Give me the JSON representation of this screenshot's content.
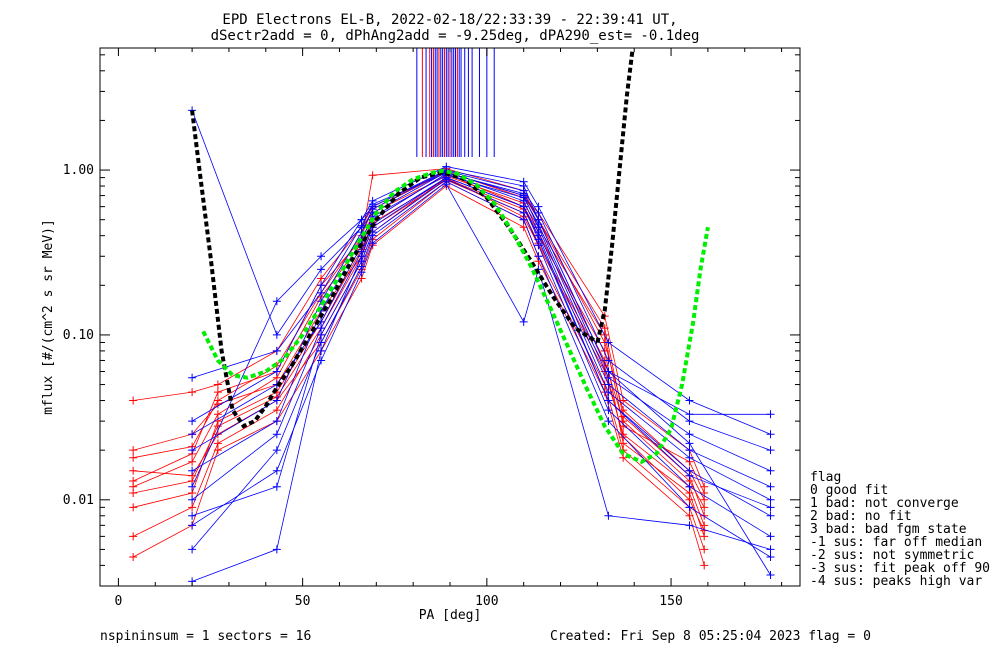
{
  "chart_data": {
    "type": "line",
    "title_line1": "EPD Electrons EL-B, 2022-02-18/22:33:39 - 22:39:41 UT,",
    "title_line2": "dSectr2add = 0, dPhAng2add = -9.25deg, dPA290_est=  -0.1deg",
    "xlabel": "PA [deg]",
    "ylabel": "mflux [#/(cm^2 s sr MeV)]",
    "xlim": [
      -5,
      185
    ],
    "ylim": [
      0.003,
      5.5
    ],
    "yscale": "log",
    "x_ticks": [
      {
        "value": 0,
        "label": "0"
      },
      {
        "value": 50,
        "label": "50"
      },
      {
        "value": 100,
        "label": "100"
      },
      {
        "value": 150,
        "label": "150"
      }
    ],
    "y_ticks": [
      {
        "value": 0.01,
        "label": "0.01"
      },
      {
        "value": 0.1,
        "label": "0.10"
      },
      {
        "value": 1.0,
        "label": "1.00"
      }
    ],
    "fit_curves": [
      {
        "color": "#000000",
        "x": [
          20,
          22,
          25,
          28,
          31,
          34,
          37,
          40,
          43,
          47
        ],
        "y": [
          2.3,
          1.0,
          0.3,
          0.08,
          0.035,
          0.028,
          0.03,
          0.037,
          0.048,
          0.065
        ]
      },
      {
        "color": "#000000",
        "x": [
          47,
          52,
          58,
          64,
          70,
          76,
          82,
          88,
          94,
          100,
          106,
          112,
          118,
          124,
          130
        ],
        "y": [
          0.065,
          0.1,
          0.17,
          0.3,
          0.5,
          0.72,
          0.9,
          0.97,
          0.88,
          0.68,
          0.45,
          0.28,
          0.17,
          0.11,
          0.09
        ]
      },
      {
        "color": "#000000",
        "x": [
          130,
          132,
          134,
          136,
          138,
          139.5
        ],
        "y": [
          0.09,
          0.14,
          0.35,
          1.0,
          2.8,
          5.3
        ]
      },
      {
        "color": "#00ee00",
        "x": [
          23,
          27,
          31,
          35,
          40,
          45,
          50,
          55,
          60,
          65,
          70,
          75,
          80,
          85,
          88,
          92,
          97,
          102,
          107,
          112,
          117,
          122,
          127,
          132,
          137,
          142,
          146,
          150,
          153,
          156,
          158,
          160
        ],
        "y": [
          0.105,
          0.07,
          0.057,
          0.055,
          0.06,
          0.072,
          0.1,
          0.15,
          0.23,
          0.36,
          0.55,
          0.74,
          0.88,
          0.96,
          0.99,
          0.95,
          0.82,
          0.63,
          0.42,
          0.26,
          0.15,
          0.085,
          0.048,
          0.028,
          0.019,
          0.017,
          0.019,
          0.027,
          0.05,
          0.12,
          0.25,
          0.45
        ]
      }
    ],
    "pa90_markers": {
      "x": [
        81,
        82.5,
        83.5,
        84.5,
        85,
        85.5,
        86,
        86.5,
        87,
        87.5,
        88,
        88.5,
        89,
        89.5,
        90,
        90.5,
        91,
        91.5,
        92,
        92.5,
        93,
        94,
        95,
        96,
        98,
        100,
        102
      ],
      "colors": [
        "#0000ff",
        "#ff0000",
        "#0000ff",
        "#ff0000",
        "#0000ff",
        "#ff0000",
        "#0000ff",
        "#0000ff",
        "#ff0000",
        "#0000ff",
        "#0000ff",
        "#ff0000",
        "#0000ff",
        "#0000ff",
        "#ff0000",
        "#0000ff",
        "#0000ff",
        "#0000ff",
        "#ff0000",
        "#0000ff",
        "#0000ff",
        "#0000ff",
        "#0000ff",
        "#0000ff",
        "#0000ff",
        "#0000ff",
        "#0000ff"
      ],
      "y_from": 1.2,
      "y_to": 5.5
    },
    "spectra_red": [
      {
        "x": [
          4,
          20,
          27,
          43,
          55,
          66,
          69,
          89,
          110,
          114,
          132,
          137,
          155,
          159
        ],
        "y": [
          0.013,
          0.019,
          0.045,
          0.06,
          0.2,
          0.38,
          0.93,
          1.02,
          0.75,
          0.5,
          0.09,
          0.035,
          0.015,
          0.01
        ]
      },
      {
        "x": [
          4,
          20,
          27,
          43,
          55,
          66,
          69,
          89,
          110,
          114,
          132,
          137,
          155,
          159
        ],
        "y": [
          0.02,
          0.025,
          0.038,
          0.05,
          0.14,
          0.3,
          0.5,
          0.95,
          0.6,
          0.42,
          0.07,
          0.03,
          0.013,
          0.009
        ]
      },
      {
        "x": [
          4,
          20,
          27,
          43,
          55,
          66,
          69,
          89,
          110,
          114,
          132,
          137,
          155,
          159
        ],
        "y": [
          0.006,
          0.009,
          0.022,
          0.035,
          0.1,
          0.28,
          0.42,
          0.9,
          0.52,
          0.35,
          0.06,
          0.025,
          0.012,
          0.007
        ]
      },
      {
        "x": [
          4,
          20,
          27,
          43,
          55,
          66,
          69,
          89,
          110,
          114,
          132,
          137,
          155,
          159
        ],
        "y": [
          0.04,
          0.045,
          0.05,
          0.08,
          0.22,
          0.45,
          0.6,
          0.98,
          0.68,
          0.55,
          0.13,
          0.04,
          0.02,
          0.012
        ]
      },
      {
        "x": [
          4,
          20,
          27,
          43,
          55,
          66,
          69,
          89,
          110,
          114,
          132,
          137,
          155,
          159
        ],
        "y": [
          0.009,
          0.011,
          0.03,
          0.045,
          0.12,
          0.33,
          0.48,
          0.88,
          0.58,
          0.4,
          0.08,
          0.022,
          0.011,
          0.006
        ]
      },
      {
        "x": [
          4,
          20,
          27,
          43,
          55,
          66,
          69,
          89,
          110,
          114,
          132,
          137,
          155,
          159
        ],
        "y": [
          0.015,
          0.014,
          0.025,
          0.04,
          0.09,
          0.25,
          0.38,
          0.85,
          0.5,
          0.3,
          0.05,
          0.02,
          0.009,
          0.005
        ]
      },
      {
        "x": [
          4,
          20,
          27,
          43,
          55,
          66,
          69,
          89,
          110,
          114,
          132,
          137,
          155,
          159
        ],
        "y": [
          0.012,
          0.017,
          0.033,
          0.055,
          0.17,
          0.36,
          0.55,
          0.92,
          0.63,
          0.45,
          0.1,
          0.028,
          0.017,
          0.011
        ]
      },
      {
        "x": [
          4,
          20,
          27,
          43,
          55,
          66,
          69,
          89,
          110,
          114,
          132,
          137,
          155,
          159
        ],
        "y": [
          0.0045,
          0.007,
          0.02,
          0.03,
          0.08,
          0.22,
          0.35,
          0.8,
          0.45,
          0.28,
          0.045,
          0.018,
          0.008,
          0.004
        ]
      },
      {
        "x": [
          4,
          20,
          27,
          43,
          55,
          66,
          69,
          89,
          110,
          114,
          132,
          137,
          155,
          159
        ],
        "y": [
          0.018,
          0.021,
          0.04,
          0.065,
          0.18,
          0.4,
          0.58,
          0.97,
          0.7,
          0.5,
          0.11,
          0.032,
          0.014,
          0.008
        ]
      },
      {
        "x": [
          4,
          20,
          27,
          43,
          55,
          66,
          69,
          89,
          110,
          114,
          132,
          137,
          155,
          159
        ],
        "y": [
          0.011,
          0.013,
          0.028,
          0.042,
          0.11,
          0.3,
          0.45,
          0.87,
          0.55,
          0.36,
          0.065,
          0.024,
          0.01,
          0.0065
        ]
      }
    ],
    "spectra_blue": [
      {
        "x": [
          20,
          43,
          55,
          66,
          69,
          89,
          110,
          114,
          133,
          155,
          177
        ],
        "y": [
          0.012,
          0.16,
          0.3,
          0.5,
          0.6,
          1.0,
          0.8,
          0.5,
          0.06,
          0.033,
          0.033
        ]
      },
      {
        "x": [
          20,
          43,
          55,
          66,
          69,
          89,
          110,
          114,
          133,
          155,
          177
        ],
        "y": [
          2.3,
          0.1,
          0.25,
          0.45,
          0.55,
          0.97,
          0.7,
          0.45,
          0.05,
          0.02,
          0.012
        ]
      },
      {
        "x": [
          20,
          43,
          55,
          66,
          69,
          89,
          110,
          114,
          133,
          155,
          177
        ],
        "y": [
          0.0032,
          0.005,
          0.08,
          0.3,
          0.45,
          0.9,
          0.6,
          0.38,
          0.04,
          0.015,
          0.008
        ]
      },
      {
        "x": [
          20,
          43,
          55,
          66,
          69,
          89,
          110,
          114,
          133,
          155,
          177
        ],
        "y": [
          0.025,
          0.05,
          0.12,
          0.35,
          0.5,
          0.95,
          0.65,
          0.42,
          0.045,
          0.018,
          0.01
        ]
      },
      {
        "x": [
          20,
          43,
          55,
          66,
          69,
          89,
          110,
          114,
          133,
          155,
          177
        ],
        "y": [
          0.008,
          0.012,
          0.1,
          0.28,
          0.42,
          0.88,
          0.55,
          0.35,
          0.035,
          0.012,
          0.006
        ]
      },
      {
        "x": [
          20,
          43,
          55,
          66,
          69,
          89,
          110,
          114,
          133,
          155,
          177
        ],
        "y": [
          0.015,
          0.03,
          0.14,
          0.38,
          0.52,
          0.93,
          0.68,
          0.47,
          0.055,
          0.025,
          0.015
        ]
      },
      {
        "x": [
          20,
          43,
          55,
          66,
          69,
          89,
          110,
          114,
          133,
          155,
          177
        ],
        "y": [
          0.005,
          0.02,
          0.09,
          0.26,
          0.4,
          0.85,
          0.5,
          0.3,
          0.03,
          0.009,
          0.0045
        ]
      },
      {
        "x": [
          20,
          43,
          55,
          66,
          69,
          89,
          110,
          114,
          133,
          155,
          177
        ],
        "y": [
          0.02,
          0.04,
          0.16,
          0.42,
          0.58,
          0.99,
          0.75,
          0.55,
          0.07,
          0.03,
          0.02
        ]
      },
      {
        "x": [
          20,
          43,
          55,
          66,
          69,
          89,
          110,
          114,
          133,
          155,
          177
        ],
        "y": [
          0.01,
          0.025,
          0.11,
          0.32,
          0.47,
          0.9,
          0.6,
          0.4,
          0.04,
          0.014,
          0.009
        ]
      },
      {
        "x": [
          20,
          43,
          55,
          66,
          69,
          89,
          110,
          114,
          133,
          155,
          177
        ],
        "y": [
          0.055,
          0.08,
          0.18,
          0.46,
          0.62,
          0.96,
          0.72,
          0.5,
          0.06,
          0.022,
          0.0035
        ]
      },
      {
        "x": [
          20,
          43,
          55,
          66,
          69,
          89,
          110,
          114,
          133,
          155,
          177
        ],
        "y": [
          0.007,
          0.015,
          0.07,
          0.24,
          0.36,
          0.82,
          0.12,
          0.25,
          0.008,
          0.007,
          0.005
        ]
      },
      {
        "x": [
          20,
          43,
          55,
          66,
          69,
          89,
          110,
          114,
          133,
          155,
          177
        ],
        "y": [
          0.03,
          0.06,
          0.2,
          0.5,
          0.65,
          1.05,
          0.85,
          0.6,
          0.09,
          0.04,
          0.025
        ]
      }
    ],
    "legend": {
      "position": "right-outside",
      "title": "flag",
      "items": [
        " 0 good fit",
        " 1 bad: not converge",
        " 2 bad: no fit",
        " 3 bad: bad fgm state",
        "-1 sus: far off median",
        "-2 sus: not symmetric",
        "-3 sus: fit peak off 90",
        "-4 sus: peaks high var"
      ]
    }
  },
  "footer": {
    "left": "nspininsum =  1  sectors = 16",
    "right": "Created: Fri Sep  8 05:25:04 2023   flag = 0"
  }
}
